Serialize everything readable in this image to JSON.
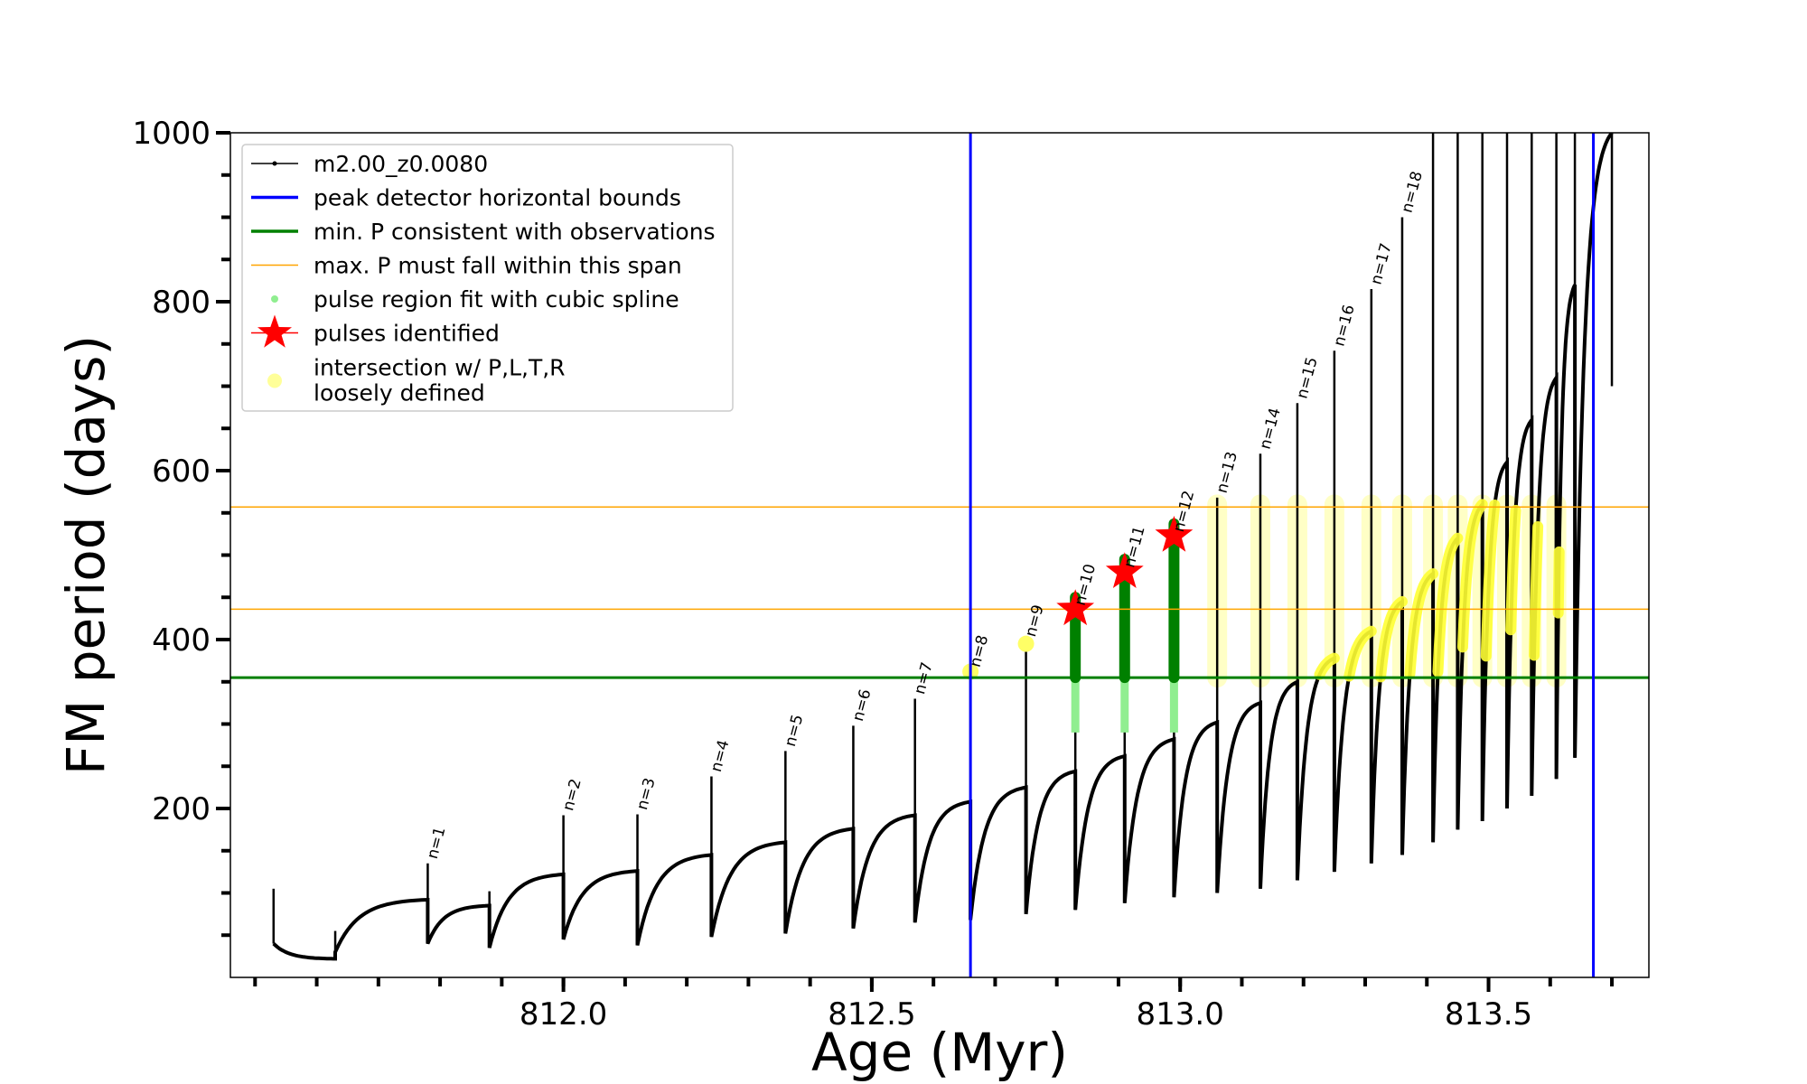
{
  "chart_data": {
    "type": "line",
    "xlabel": "Age (Myr)",
    "ylabel": "FM period (days)",
    "xlim": [
      811.46,
      813.76
    ],
    "ylim": [
      0,
      1000
    ],
    "x_ticks": [
      {
        "value": 812.0,
        "label": "812.0"
      },
      {
        "value": 812.5,
        "label": "812.5"
      },
      {
        "value": 813.0,
        "label": "813.0"
      },
      {
        "value": 813.5,
        "label": "813.5"
      }
    ],
    "y_ticks": [
      {
        "value": 200,
        "label": "200"
      },
      {
        "value": 400,
        "label": "400"
      },
      {
        "value": 600,
        "label": "600"
      },
      {
        "value": 800,
        "label": "800"
      },
      {
        "value": 1000,
        "label": "1000"
      }
    ],
    "grid": false,
    "legend_placement": "top-left",
    "legend": [
      {
        "label": "m2.00_z0.0080",
        "kind": "line-dot",
        "color": "#000000"
      },
      {
        "label": "peak detector horizontal bounds",
        "kind": "line",
        "color": "#0000ff"
      },
      {
        "label": "min. P consistent with observations",
        "kind": "line",
        "color": "#008000"
      },
      {
        "label": "max. P must fall within this span",
        "kind": "thin-line",
        "color": "#ffa500"
      },
      {
        "label": "pulse region fit with cubic spline",
        "kind": "dot",
        "color": "#90ee90"
      },
      {
        "label": "pulses identified",
        "kind": "star",
        "color": "#ff0000"
      },
      {
        "label": "intersection w/ P,L,T,R",
        "label2": "loosely defined",
        "kind": "big-dot",
        "color": "#ffff99"
      }
    ],
    "vlines": [
      {
        "x": 812.66,
        "color": "#0000ff"
      },
      {
        "x": 813.67,
        "color": "#0000ff"
      }
    ],
    "hlines": [
      {
        "y": 355,
        "color": "#008000",
        "width": 3
      },
      {
        "y": 436,
        "color": "#ffa500",
        "width": 1.5
      },
      {
        "y": 557,
        "color": "#ffa500",
        "width": 1.5
      }
    ],
    "pulses": [
      {
        "x": 811.53,
        "base": 40,
        "peak": 105,
        "pre": 30,
        "label": ""
      },
      {
        "x": 811.63,
        "base": 30,
        "peak": 55,
        "pre": 22,
        "label": ""
      },
      {
        "x": 811.78,
        "base": 40,
        "peak": 135,
        "pre": 92,
        "label": "n=1"
      },
      {
        "x": 811.88,
        "base": 35,
        "peak": 102,
        "pre": 85,
        "label": ""
      },
      {
        "x": 812.0,
        "base": 45,
        "peak": 192,
        "pre": 122,
        "label": "n=2"
      },
      {
        "x": 812.12,
        "base": 38,
        "peak": 193,
        "pre": 126,
        "label": "n=3"
      },
      {
        "x": 812.24,
        "base": 48,
        "peak": 238,
        "pre": 145,
        "label": "n=4"
      },
      {
        "x": 812.36,
        "base": 52,
        "peak": 268,
        "pre": 160,
        "label": "n=5"
      },
      {
        "x": 812.47,
        "base": 58,
        "peak": 298,
        "pre": 176,
        "label": "n=6"
      },
      {
        "x": 812.57,
        "base": 65,
        "peak": 330,
        "pre": 192,
        "label": "n=7"
      },
      {
        "x": 812.66,
        "base": 68,
        "peak": 362,
        "pre": 208,
        "label": "n=8"
      },
      {
        "x": 812.75,
        "base": 75,
        "peak": 398,
        "pre": 225,
        "label": "n=9"
      },
      {
        "x": 812.83,
        "base": 80,
        "peak": 435,
        "pre": 244,
        "label": "n=10"
      },
      {
        "x": 812.91,
        "base": 88,
        "peak": 480,
        "pre": 262,
        "label": "n=11"
      },
      {
        "x": 812.99,
        "base": 95,
        "peak": 522,
        "pre": 282,
        "label": "n=12"
      },
      {
        "x": 813.06,
        "base": 100,
        "peak": 568,
        "pre": 302,
        "label": "n=13"
      },
      {
        "x": 813.13,
        "base": 105,
        "peak": 620,
        "pre": 325,
        "label": "n=14"
      },
      {
        "x": 813.19,
        "base": 115,
        "peak": 680,
        "pre": 350,
        "label": "n=15"
      },
      {
        "x": 813.25,
        "base": 125,
        "peak": 742,
        "pre": 378,
        "label": "n=16"
      },
      {
        "x": 813.31,
        "base": 135,
        "peak": 815,
        "pre": 410,
        "label": "n=17"
      },
      {
        "x": 813.36,
        "base": 145,
        "peak": 900,
        "pre": 445,
        "label": "n=18"
      },
      {
        "x": 813.41,
        "base": 160,
        "peak": 1000,
        "pre": 478,
        "label": ""
      },
      {
        "x": 813.45,
        "base": 175,
        "peak": 1000,
        "pre": 520,
        "label": ""
      },
      {
        "x": 813.49,
        "base": 185,
        "peak": 1000,
        "pre": 560,
        "label": ""
      },
      {
        "x": 813.53,
        "base": 200,
        "peak": 1000,
        "pre": 610,
        "label": ""
      },
      {
        "x": 813.57,
        "base": 215,
        "peak": 1000,
        "pre": 660,
        "label": ""
      },
      {
        "x": 813.61,
        "base": 235,
        "peak": 1000,
        "pre": 710,
        "label": ""
      },
      {
        "x": 813.64,
        "base": 260,
        "peak": 1000,
        "pre": 820,
        "label": ""
      },
      {
        "x": 813.7,
        "base": 700,
        "peak": 1000,
        "pre": 1000,
        "label": ""
      }
    ],
    "pulses_identified": [
      {
        "x": 812.83,
        "y": 436
      },
      {
        "x": 812.91,
        "y": 480
      },
      {
        "x": 812.99,
        "y": 523
      }
    ]
  }
}
